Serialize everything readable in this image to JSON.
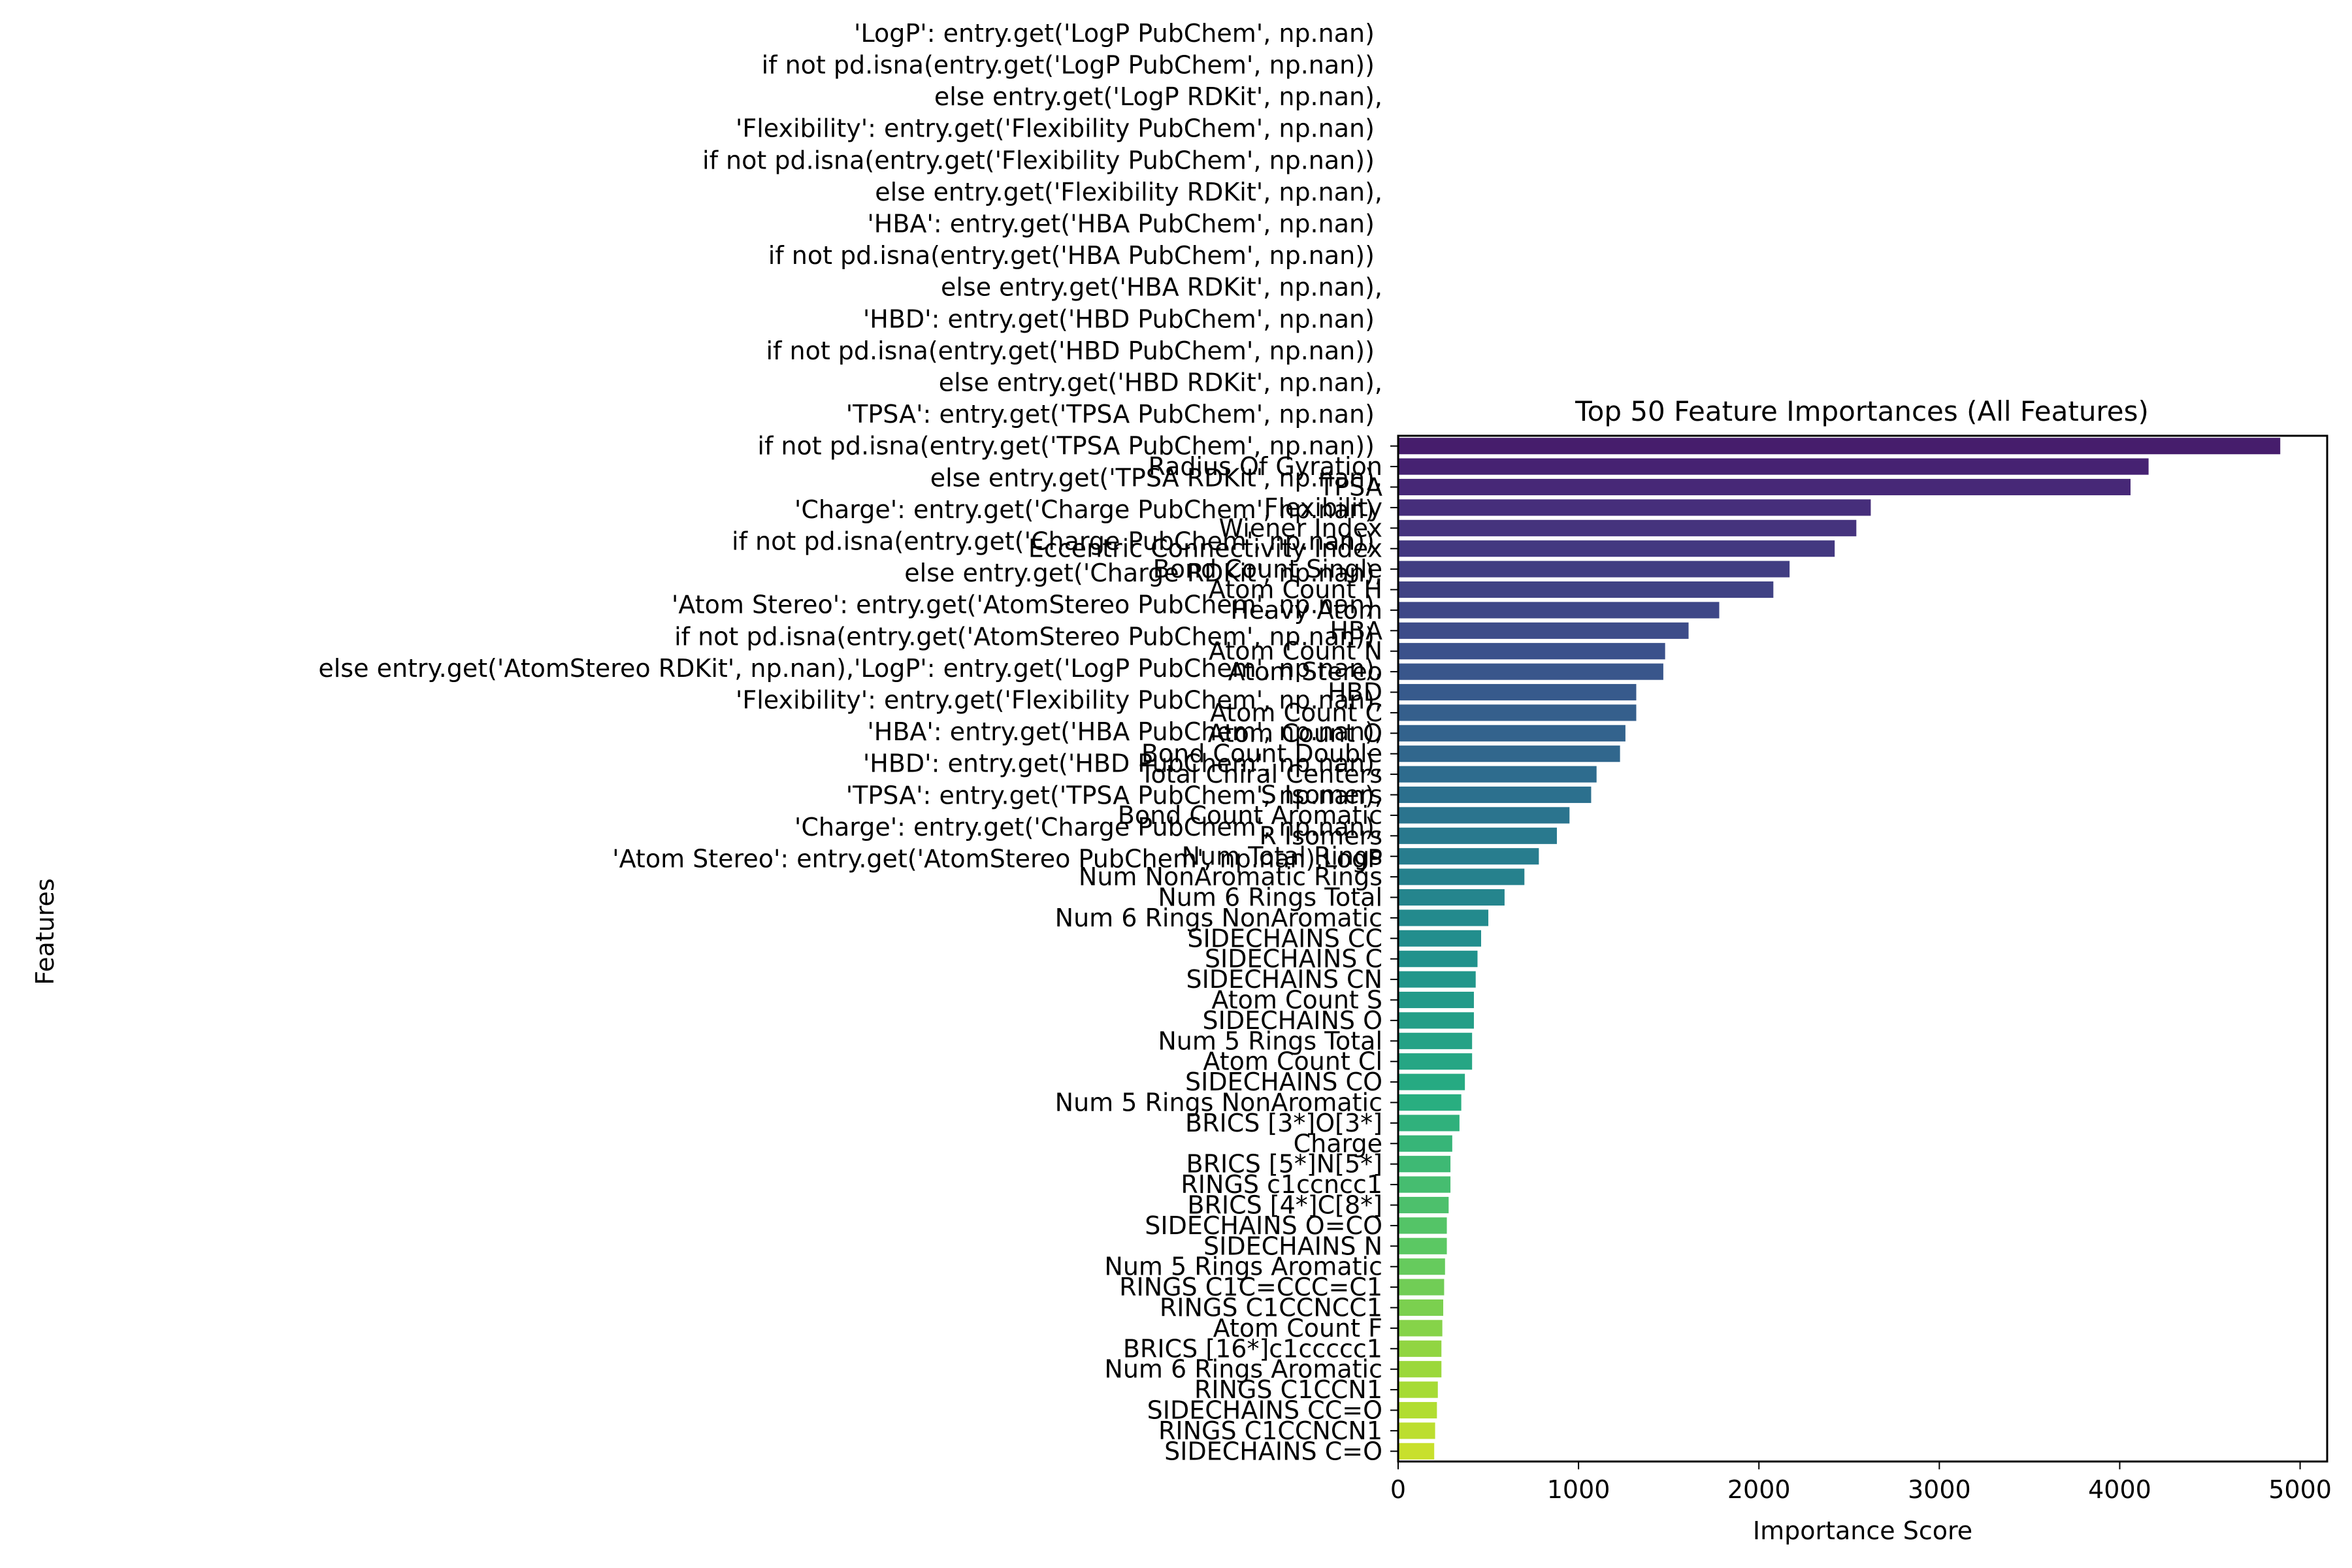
{
  "chart_data": {
    "type": "bar",
    "orientation": "horizontal",
    "title": "Top 50 Feature Importances (All Features)",
    "xlabel": "Importance Score",
    "ylabel": "Features",
    "xlim": [
      0,
      5150
    ],
    "xticks": [
      0,
      1000,
      2000,
      3000,
      4000,
      5000
    ],
    "grid": false,
    "palette": "viridis",
    "categories": [
      "'LogP': entry.get('LogP PubChem', np.nan) \nif not pd.isna(entry.get('LogP PubChem', np.nan)) \nelse entry.get('LogP RDKit', np.nan),\n'Flexibility': entry.get('Flexibility PubChem', np.nan) \nif not pd.isna(entry.get('Flexibility PubChem', np.nan)) \nelse entry.get('Flexibility RDKit', np.nan),\n'HBA': entry.get('HBA PubChem', np.nan) \nif not pd.isna(entry.get('HBA PubChem', np.nan)) \nelse entry.get('HBA RDKit', np.nan),\n'HBD': entry.get('HBD PubChem', np.nan) \nif not pd.isna(entry.get('HBD PubChem', np.nan)) \nelse entry.get('HBD RDKit', np.nan),\n'TPSA': entry.get('TPSA PubChem', np.nan) \nif not pd.isna(entry.get('TPSA PubChem', np.nan)) \nelse entry.get('TPSA RDKit', np.nan),\n'Charge': entry.get('Charge PubChem', np.nan) \nif not pd.isna(entry.get('Charge PubChem', np.nan)) \nelse entry.get('Charge RDKit', np.nan),\n'Atom Stereo': entry.get('AtomStereo PubChem', np.nan) \nif not pd.isna(entry.get('AtomStereo PubChem', np.nan)) \nelse entry.get('AtomStereo RDKit', np.nan),'LogP': entry.get('LogP PubChem', np.nan),\n'Flexibility': entry.get('Flexibility PubChem', np.nan),\n'HBA': entry.get('HBA PubChem', np.nan),\n'HBD': entry.get('HBD PubChem', np.nan),\n'TPSA': entry.get('TPSA PubChem', np.nan),\n'Charge': entry.get('Charge PubChem', np.nan),\n'Atom Stereo': entry.get('AtomStereo PubChem', np.nan),LogP",
      "Radius Of Gyration",
      "TPSA",
      "Flexibility",
      "Wiener Index",
      "Eccentric Connectivity Index",
      "Bond Count Single",
      "Atom Count H",
      "Heavy Atom",
      "HBA",
      "Atom Count N",
      "Atom Stereo",
      "HBD",
      "Atom Count C",
      "Atom Count O",
      "Bond Count Double",
      "Total Chiral Centers",
      "S Isomers",
      "Bond Count Aromatic",
      "R Isomers",
      "Num Total Rings",
      "Num NonAromatic Rings",
      "Num 6 Rings Total",
      "Num 6 Rings NonAromatic",
      "SIDECHAINS CC",
      "SIDECHAINS C",
      "SIDECHAINS CN",
      "Atom Count S",
      "SIDECHAINS O",
      "Num 5 Rings Total",
      "Atom Count Cl",
      "SIDECHAINS CO",
      "Num 5 Rings NonAromatic",
      "BRICS [3*]O[3*]",
      "Charge",
      "BRICS [5*]N[5*]",
      "RINGS c1ccncc1",
      "BRICS [4*]C[8*]",
      "SIDECHAINS O=CO",
      "SIDECHAINS N",
      "Num 5 Rings Aromatic",
      "RINGS C1C=CCC=C1",
      "RINGS C1CCNCC1",
      "Atom Count F",
      "BRICS [16*]c1ccccc1",
      "Num 6 Rings Aromatic",
      "RINGS C1CCN1",
      "SIDECHAINS CC=O",
      "RINGS C1CCNCN1",
      "SIDECHAINS C=O"
    ],
    "values": [
      4890,
      4160,
      4060,
      2620,
      2540,
      2420,
      2170,
      2080,
      1780,
      1610,
      1480,
      1470,
      1320,
      1320,
      1260,
      1230,
      1100,
      1070,
      950,
      880,
      780,
      700,
      590,
      500,
      460,
      440,
      430,
      420,
      420,
      410,
      410,
      370,
      350,
      340,
      300,
      290,
      290,
      280,
      270,
      270,
      260,
      255,
      250,
      245,
      240,
      240,
      220,
      215,
      205,
      200
    ]
  }
}
